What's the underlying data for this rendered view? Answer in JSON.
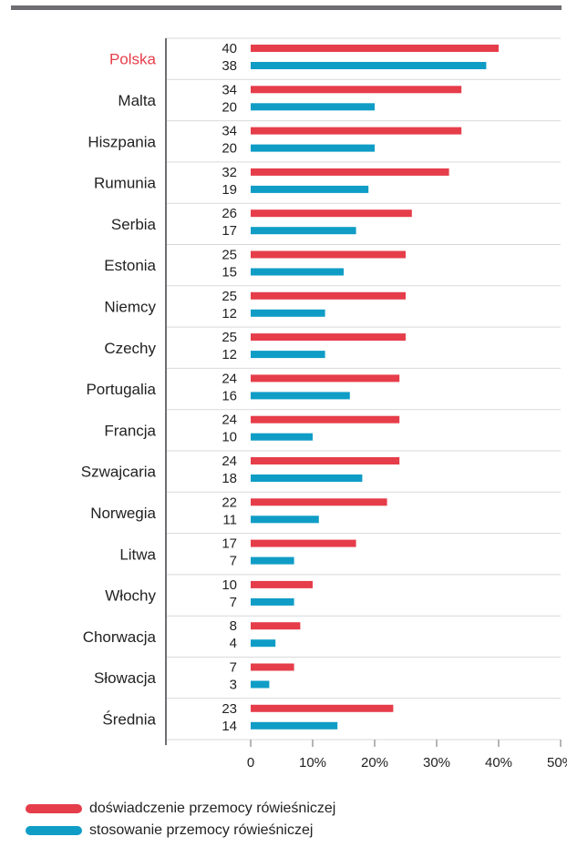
{
  "chart_data": {
    "type": "bar",
    "orientation": "horizontal",
    "categories": [
      "Polska",
      "Malta",
      "Hiszpania",
      "Rumunia",
      "Serbia",
      "Estonia",
      "Niemcy",
      "Czechy",
      "Portugalia",
      "Francja",
      "Szwajcaria",
      "Norwegia",
      "Litwa",
      "Włochy",
      "Chorwacja",
      "Słowacja",
      "Średnia"
    ],
    "highlight_category": "Polska",
    "series": [
      {
        "name": "doświadczenie przemocy rówieśniczej",
        "color": "#e63d4a",
        "values": [
          40,
          34,
          34,
          32,
          26,
          25,
          25,
          25,
          24,
          24,
          24,
          22,
          17,
          10,
          8,
          7,
          23
        ]
      },
      {
        "name": "stosowanie przemocy rówieśniczej",
        "color": "#0f9dc6",
        "values": [
          38,
          20,
          20,
          19,
          17,
          15,
          12,
          12,
          16,
          10,
          18,
          11,
          7,
          7,
          4,
          3,
          14
        ]
      }
    ],
    "xlim": [
      0,
      50
    ],
    "xticks": [
      "0",
      "10%",
      "20%",
      "30%",
      "40%",
      "50%"
    ],
    "grid": true,
    "legend_position": "bottom-left"
  }
}
